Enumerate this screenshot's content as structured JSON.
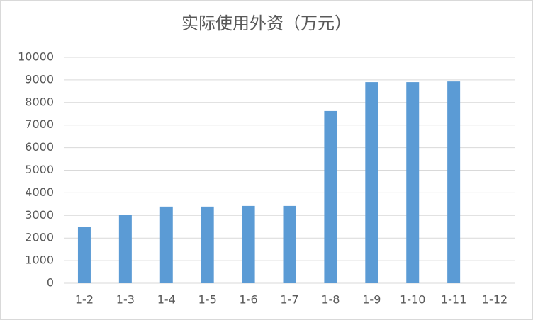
{
  "chart_data": {
    "type": "bar",
    "title": "实际使用外资（万元）",
    "categories": [
      "1-2",
      "1-3",
      "1-4",
      "1-5",
      "1-6",
      "1-7",
      "1-8",
      "1-9",
      "1-10",
      "1-11",
      "1-12"
    ],
    "values": [
      2480,
      3010,
      3390,
      3390,
      3420,
      3420,
      7620,
      8900,
      8900,
      8930,
      null
    ],
    "color": "#5b9bd5",
    "ylim": [
      0,
      10000
    ],
    "yticks": [
      0,
      1000,
      2000,
      3000,
      4000,
      5000,
      6000,
      7000,
      8000,
      9000,
      10000
    ],
    "grid": true
  }
}
